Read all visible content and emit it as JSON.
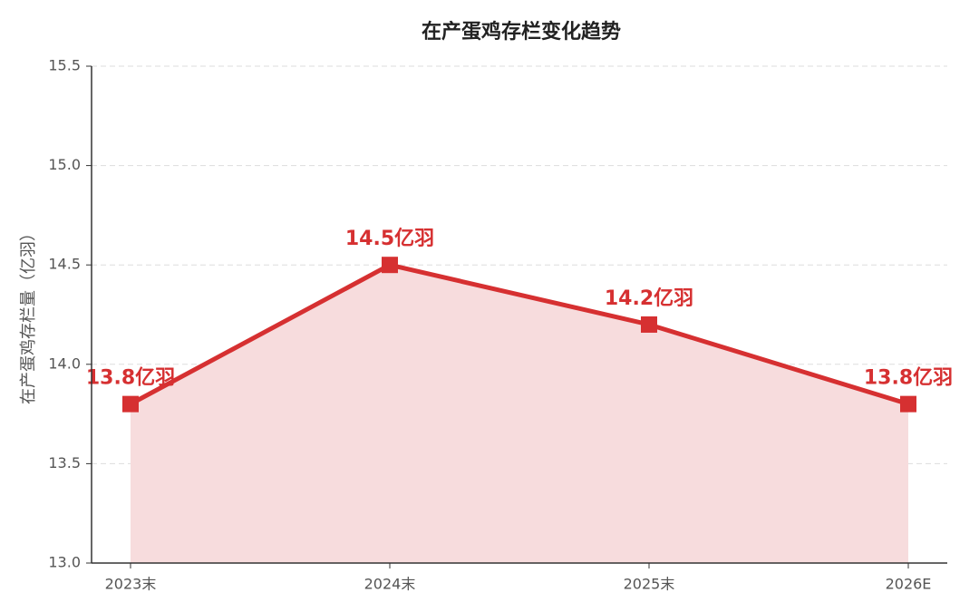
{
  "chart_data": {
    "type": "line",
    "title": "在产蛋鸡存栏变化趋势",
    "y_label": "在产蛋鸡存栏量（亿羽）",
    "categories": [
      "2023末",
      "2024末",
      "2025末",
      "2026E"
    ],
    "values": [
      13.8,
      14.5,
      14.2,
      13.8
    ],
    "value_labels": [
      "13.8亿羽",
      "14.5亿羽",
      "14.2亿羽",
      "13.8亿羽"
    ],
    "color": "#d63031",
    "fill_color": "#f7dcdd",
    "ylim": [
      13,
      15.5
    ],
    "yticks": [
      {
        "value": 13,
        "label": "13.0"
      },
      {
        "value": 13.5,
        "label": "13.5"
      },
      {
        "value": 14,
        "label": "14.0"
      },
      {
        "value": 14.5,
        "label": "14.5"
      },
      {
        "value": 15,
        "label": "15.0"
      },
      {
        "value": 15.5,
        "label": "15.5"
      }
    ],
    "grid": true
  }
}
